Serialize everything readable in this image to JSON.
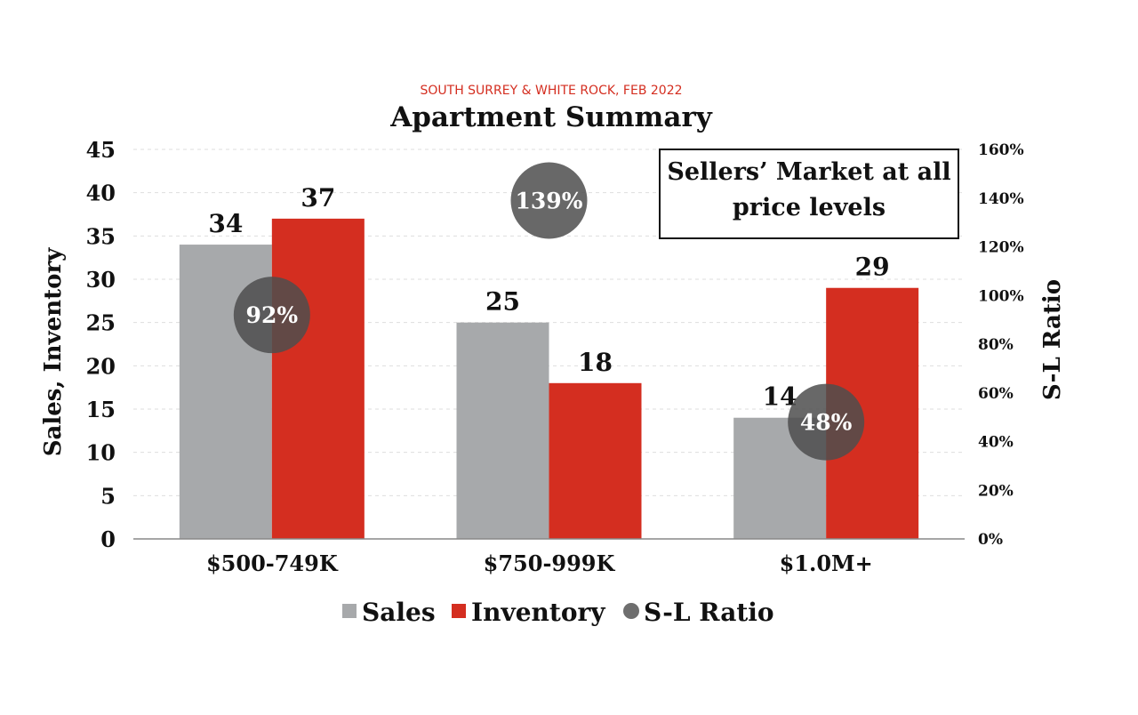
{
  "chart_data": {
    "type": "bar",
    "subtitle": "SOUTH SURREY & WHITE ROCK, FEB 2022",
    "title": "Apartment Summary",
    "categories": [
      "$500-749K",
      "$750-999K",
      "$1.0M+"
    ],
    "series": [
      {
        "name": "Sales",
        "values": [
          34,
          25,
          14
        ],
        "color": "#a7a9ab",
        "labels": [
          "34",
          "25",
          "14"
        ]
      },
      {
        "name": "Inventory",
        "values": [
          37,
          18,
          29
        ],
        "color": "#d42e20",
        "labels": [
          "37",
          "18",
          "29"
        ]
      }
    ],
    "ratio_series": {
      "name": "S-L Ratio",
      "values": [
        92,
        139,
        48
      ],
      "labels": [
        "92%",
        "139%",
        "48%"
      ],
      "color": "#4d4d4d"
    },
    "ylabel": "Sales, Inventory",
    "ylim": [
      0,
      45
    ],
    "yticks": [
      "0",
      "5",
      "10",
      "15",
      "20",
      "25",
      "30",
      "35",
      "40",
      "45"
    ],
    "y2label": "S-L Ratio",
    "y2lim": [
      0,
      160
    ],
    "y2ticks": [
      "0%",
      "20%",
      "40%",
      "60%",
      "80%",
      "100%",
      "120%",
      "140%",
      "160%"
    ],
    "annotation": [
      "Sellers’ Market at all",
      "price levels"
    ],
    "grid": true,
    "legend_position": "bottom"
  }
}
